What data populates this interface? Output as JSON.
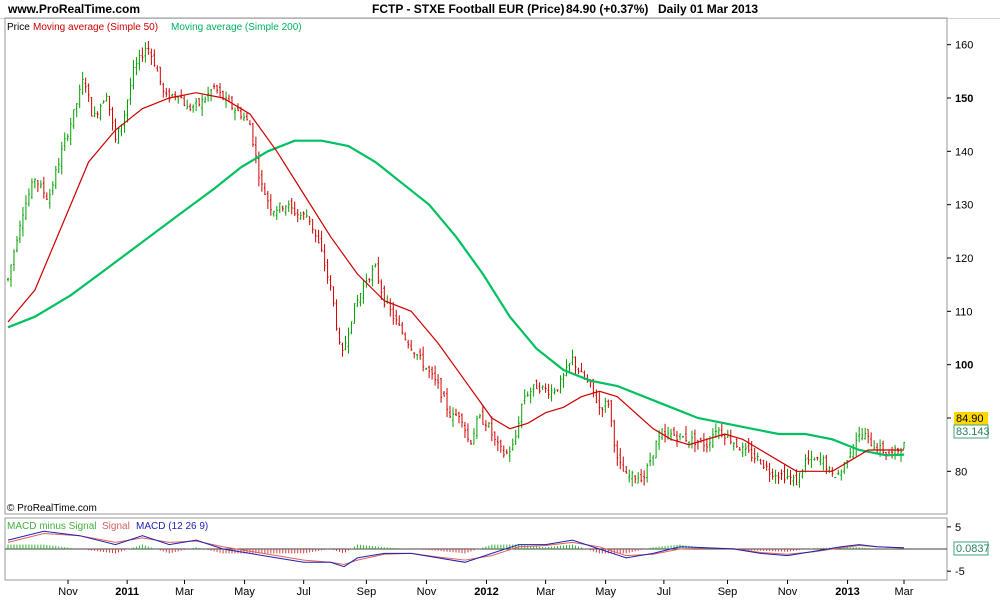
{
  "header": {
    "site": "www.ProRealTime.com",
    "title": "FCTP - STXE Football EUR (Price)",
    "last": "84.90 (+0.37%)",
    "period": "Daily  01 Mar 2013"
  },
  "legend": {
    "price": "Price",
    "ma50": "Moving average (Simple 50)",
    "ma200": "Moving average (Simple 200)"
  },
  "copyright": "© ProRealTime.com",
  "macd_legend": {
    "hist": "MACD minus Signal",
    "signal": "Signal",
    "macd": "MACD (12 26 9)"
  },
  "colors": {
    "up": "#00a000",
    "down": "#d00000",
    "ma50": "#cc0000",
    "ma200": "#00c060",
    "macd": "#2020b0",
    "signal": "#e06060",
    "price_badge_bg": "#ffd800",
    "ma_badge": "#40a080"
  },
  "badges": {
    "price": "84.90",
    "ma200": "83.143",
    "macd": "0.0837"
  },
  "chart_data": [
    {
      "type": "line",
      "chart": "price",
      "ylim": [
        72,
        165
      ],
      "y_ticks": [
        80,
        90,
        100,
        110,
        120,
        130,
        140,
        150,
        160
      ],
      "bold_ticks": [
        100,
        150
      ],
      "x_ticks": [
        {
          "label": "Nov",
          "t": 0.067
        },
        {
          "label": "2011",
          "t": 0.133,
          "bold": true
        },
        {
          "label": "Mar",
          "t": 0.197
        },
        {
          "label": "May",
          "t": 0.264
        },
        {
          "label": "Jul",
          "t": 0.33
        },
        {
          "label": "Sep",
          "t": 0.4
        },
        {
          "label": "Nov",
          "t": 0.467
        },
        {
          "label": "2012",
          "t": 0.534,
          "bold": true
        },
        {
          "label": "Mar",
          "t": 0.6
        },
        {
          "label": "May",
          "t": 0.667
        },
        {
          "label": "Jul",
          "t": 0.732
        },
        {
          "label": "Sep",
          "t": 0.803
        },
        {
          "label": "Nov",
          "t": 0.87
        },
        {
          "label": "2013",
          "t": 0.937,
          "bold": true
        },
        {
          "label": "Mar",
          "t": 1.0
        }
      ],
      "price": [
        [
          0.0,
          116
        ],
        [
          0.015,
          128
        ],
        [
          0.03,
          135
        ],
        [
          0.045,
          131
        ],
        [
          0.06,
          140
        ],
        [
          0.075,
          148
        ],
        [
          0.085,
          154
        ],
        [
          0.095,
          146
        ],
        [
          0.11,
          151
        ],
        [
          0.12,
          142
        ],
        [
          0.13,
          147
        ],
        [
          0.14,
          155
        ],
        [
          0.155,
          160
        ],
        [
          0.165,
          156
        ],
        [
          0.175,
          150
        ],
        [
          0.19,
          151
        ],
        [
          0.2,
          148
        ],
        [
          0.215,
          149
        ],
        [
          0.23,
          152
        ],
        [
          0.245,
          149
        ],
        [
          0.26,
          147
        ],
        [
          0.27,
          145
        ],
        [
          0.282,
          134
        ],
        [
          0.295,
          129
        ],
        [
          0.31,
          130
        ],
        [
          0.325,
          128
        ],
        [
          0.335,
          128
        ],
        [
          0.35,
          121
        ],
        [
          0.362,
          113
        ],
        [
          0.372,
          101
        ],
        [
          0.385,
          110
        ],
        [
          0.4,
          116
        ],
        [
          0.41,
          118
        ],
        [
          0.42,
          112
        ],
        [
          0.44,
          106
        ],
        [
          0.46,
          101
        ],
        [
          0.48,
          96
        ],
        [
          0.495,
          90
        ],
        [
          0.505,
          91
        ],
        [
          0.515,
          85
        ],
        [
          0.525,
          90
        ],
        [
          0.535,
          89
        ],
        [
          0.545,
          85
        ],
        [
          0.555,
          83
        ],
        [
          0.565,
          85
        ],
        [
          0.575,
          94
        ],
        [
          0.59,
          96
        ],
        [
          0.605,
          95
        ],
        [
          0.615,
          96
        ],
        [
          0.63,
          101
        ],
        [
          0.64,
          98
        ],
        [
          0.65,
          96
        ],
        [
          0.66,
          92
        ],
        [
          0.67,
          93
        ],
        [
          0.68,
          82
        ],
        [
          0.69,
          79
        ],
        [
          0.7,
          79
        ],
        [
          0.71,
          79
        ],
        [
          0.725,
          86
        ],
        [
          0.74,
          87
        ],
        [
          0.76,
          86
        ],
        [
          0.78,
          85
        ],
        [
          0.79,
          88
        ],
        [
          0.8,
          87
        ],
        [
          0.82,
          84
        ],
        [
          0.84,
          82
        ],
        [
          0.85,
          80
        ],
        [
          0.87,
          79
        ],
        [
          0.88,
          78
        ],
        [
          0.89,
          82
        ],
        [
          0.9,
          82
        ],
        [
          0.91,
          82
        ],
        [
          0.92,
          79
        ],
        [
          0.93,
          80
        ],
        [
          0.945,
          86
        ],
        [
          0.955,
          87
        ],
        [
          0.965,
          85
        ],
        [
          0.975,
          84
        ],
        [
          0.985,
          83
        ],
        [
          1.0,
          84.9
        ]
      ],
      "ma50": [
        [
          0.0,
          108
        ],
        [
          0.03,
          114
        ],
        [
          0.06,
          126
        ],
        [
          0.09,
          138
        ],
        [
          0.12,
          144
        ],
        [
          0.15,
          148
        ],
        [
          0.18,
          150
        ],
        [
          0.21,
          151
        ],
        [
          0.24,
          150
        ],
        [
          0.27,
          147
        ],
        [
          0.3,
          140
        ],
        [
          0.33,
          132
        ],
        [
          0.36,
          124
        ],
        [
          0.39,
          117
        ],
        [
          0.42,
          112
        ],
        [
          0.45,
          110
        ],
        [
          0.48,
          104
        ],
        [
          0.51,
          97
        ],
        [
          0.54,
          90
        ],
        [
          0.56,
          88
        ],
        [
          0.58,
          89
        ],
        [
          0.6,
          91
        ],
        [
          0.62,
          92
        ],
        [
          0.64,
          94
        ],
        [
          0.66,
          95
        ],
        [
          0.68,
          94
        ],
        [
          0.7,
          91
        ],
        [
          0.72,
          88
        ],
        [
          0.74,
          86
        ],
        [
          0.76,
          85
        ],
        [
          0.78,
          86
        ],
        [
          0.8,
          87
        ],
        [
          0.82,
          86
        ],
        [
          0.84,
          84
        ],
        [
          0.86,
          82
        ],
        [
          0.88,
          80
        ],
        [
          0.9,
          80
        ],
        [
          0.92,
          80
        ],
        [
          0.94,
          82
        ],
        [
          0.96,
          84
        ],
        [
          0.98,
          84
        ],
        [
          1.0,
          84
        ]
      ],
      "ma200": [
        [
          0.0,
          107
        ],
        [
          0.03,
          109
        ],
        [
          0.07,
          113
        ],
        [
          0.11,
          118
        ],
        [
          0.15,
          123
        ],
        [
          0.19,
          128
        ],
        [
          0.23,
          133
        ],
        [
          0.26,
          137
        ],
        [
          0.29,
          140
        ],
        [
          0.32,
          142
        ],
        [
          0.35,
          142
        ],
        [
          0.38,
          141
        ],
        [
          0.41,
          138
        ],
        [
          0.44,
          134
        ],
        [
          0.47,
          130
        ],
        [
          0.5,
          124
        ],
        [
          0.53,
          117
        ],
        [
          0.56,
          109
        ],
        [
          0.59,
          103
        ],
        [
          0.62,
          99
        ],
        [
          0.65,
          97
        ],
        [
          0.68,
          96
        ],
        [
          0.71,
          94
        ],
        [
          0.74,
          92
        ],
        [
          0.77,
          90
        ],
        [
          0.8,
          89
        ],
        [
          0.83,
          88
        ],
        [
          0.86,
          87
        ],
        [
          0.89,
          87
        ],
        [
          0.92,
          86
        ],
        [
          0.95,
          84
        ],
        [
          0.98,
          83
        ],
        [
          1.0,
          83.143
        ]
      ]
    },
    {
      "type": "line",
      "chart": "macd",
      "ylim": [
        -7,
        7
      ],
      "y_ticks": [
        5,
        -5
      ],
      "macd": [
        [
          0.0,
          2
        ],
        [
          0.04,
          4
        ],
        [
          0.08,
          3
        ],
        [
          0.12,
          1
        ],
        [
          0.15,
          3
        ],
        [
          0.18,
          1
        ],
        [
          0.21,
          2
        ],
        [
          0.24,
          0
        ],
        [
          0.27,
          -1
        ],
        [
          0.3,
          -2
        ],
        [
          0.33,
          -3
        ],
        [
          0.36,
          -3
        ],
        [
          0.375,
          -4
        ],
        [
          0.39,
          -2
        ],
        [
          0.42,
          -1
        ],
        [
          0.45,
          -1
        ],
        [
          0.48,
          -2
        ],
        [
          0.51,
          -3
        ],
        [
          0.54,
          -1
        ],
        [
          0.57,
          1
        ],
        [
          0.6,
          1
        ],
        [
          0.63,
          2
        ],
        [
          0.66,
          0
        ],
        [
          0.69,
          -2
        ],
        [
          0.72,
          -1
        ],
        [
          0.75,
          0.5
        ],
        [
          0.78,
          0.3
        ],
        [
          0.81,
          0
        ],
        [
          0.84,
          -1
        ],
        [
          0.87,
          -1.5
        ],
        [
          0.9,
          -0.5
        ],
        [
          0.93,
          0.5
        ],
        [
          0.95,
          1
        ],
        [
          0.97,
          0.5
        ],
        [
          1.0,
          0.3
        ]
      ],
      "signal": [
        [
          0.0,
          1.5
        ],
        [
          0.04,
          3.5
        ],
        [
          0.08,
          3
        ],
        [
          0.12,
          1.5
        ],
        [
          0.15,
          2.5
        ],
        [
          0.18,
          1.5
        ],
        [
          0.21,
          1.8
        ],
        [
          0.24,
          0.5
        ],
        [
          0.27,
          -0.5
        ],
        [
          0.3,
          -1.5
        ],
        [
          0.33,
          -2.5
        ],
        [
          0.36,
          -3
        ],
        [
          0.375,
          -3.5
        ],
        [
          0.39,
          -2.5
        ],
        [
          0.42,
          -1.2
        ],
        [
          0.45,
          -1
        ],
        [
          0.48,
          -1.8
        ],
        [
          0.51,
          -2.5
        ],
        [
          0.54,
          -1.5
        ],
        [
          0.57,
          0.5
        ],
        [
          0.6,
          0.8
        ],
        [
          0.63,
          1.5
        ],
        [
          0.66,
          0.5
        ],
        [
          0.69,
          -1.5
        ],
        [
          0.72,
          -1.2
        ],
        [
          0.75,
          0
        ],
        [
          0.78,
          0.2
        ],
        [
          0.81,
          0.1
        ],
        [
          0.84,
          -0.8
        ],
        [
          0.87,
          -1.2
        ],
        [
          0.9,
          -0.6
        ],
        [
          0.93,
          0.3
        ],
        [
          0.95,
          0.8
        ],
        [
          0.97,
          0.5
        ],
        [
          1.0,
          0.2
        ]
      ],
      "last": 0.0837
    }
  ]
}
